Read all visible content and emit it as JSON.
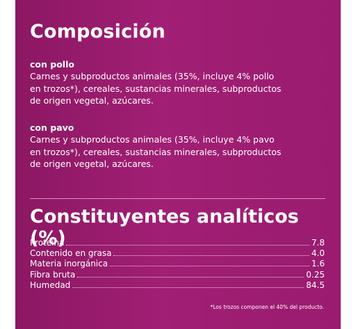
{
  "composition": {
    "title": "Composición",
    "variants": [
      {
        "name": "con pollo",
        "lines": [
          "Carnes y subproductos animales (35%, incluye 4% pollo",
          "en trozos*), cereales, sustancias minerales, subproductos",
          "de origen vegetal, azúcares."
        ]
      },
      {
        "name": "con pavo",
        "lines": [
          "Carnes y subproductos animales (35%, incluye 4% pavo",
          "en trozos*), cereales, sustancias minerales, subproductos",
          "de origen vegetal, azúcares."
        ]
      }
    ]
  },
  "analytics": {
    "title": "Constituyentes analíticos (%)",
    "rows": [
      {
        "label": "Proteína",
        "value": "7.8"
      },
      {
        "label": "Contenido en grasa",
        "value": "4.0"
      },
      {
        "label": "Materia inorgánica",
        "value": "1.6"
      },
      {
        "label": "Fibra bruta",
        "value": "0.25"
      },
      {
        "label": "Humedad",
        "value": "84.5"
      }
    ]
  },
  "footnote": "*Los trozos componen el 40% del producto.",
  "colors": {
    "panel": "#9a1b70",
    "text": "#ffffff"
  }
}
